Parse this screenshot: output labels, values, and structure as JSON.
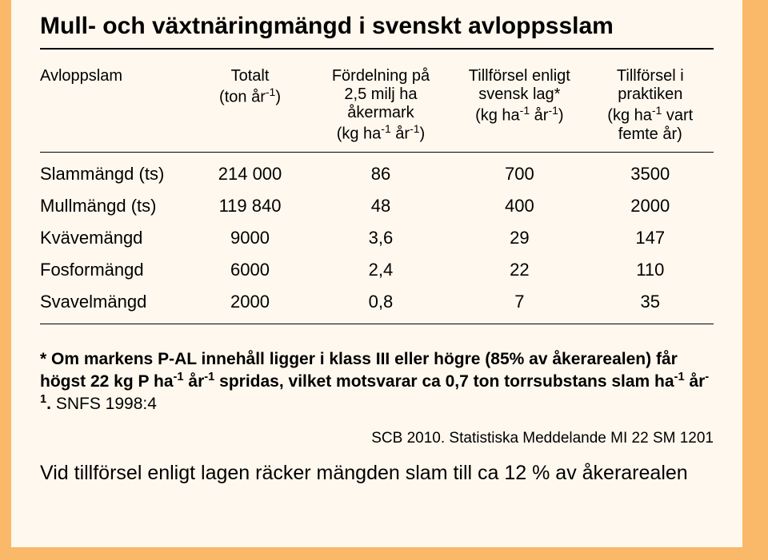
{
  "title": "Mull- och växtnäringmängd i svenskt avloppsslam",
  "headers": {
    "label": "Avloppslam",
    "total_l1": "Totalt",
    "total_l2": "(ton år",
    "total_sup": "-1",
    "total_l2b": ")",
    "ford_l1": "Fördelning på",
    "ford_l2": "2,5 milj ha",
    "ford_l3": "åkermark",
    "ford_l4a": "(kg ha",
    "ford_sup1": "-1",
    "ford_l4b": " år",
    "ford_sup2": "-1",
    "ford_l4c": ")",
    "lag_l1": "Tillförsel enligt",
    "lag_l2": "svensk lag*",
    "lag_l3a": "(kg ha",
    "lag_sup1": "-1",
    "lag_l3b": " år",
    "lag_sup2": "-1",
    "lag_l3c": ")",
    "prakt_l1": "Tillförsel i",
    "prakt_l2": "praktiken",
    "prakt_l3a": "(kg ha",
    "prakt_sup": "-1",
    "prakt_l3b": " vart",
    "prakt_l4": "femte år)"
  },
  "rows": [
    {
      "label": "Slammängd (ts)",
      "total": "214 000",
      "ford": "86",
      "lag": "700",
      "prakt": "3500"
    },
    {
      "label": "Mullmängd (ts)",
      "total": "119 840",
      "ford": "48",
      "lag": "400",
      "prakt": "2000"
    },
    {
      "label": "Kvävemängd",
      "total": "9000",
      "ford": "3,6",
      "lag": "29",
      "prakt": "147"
    },
    {
      "label": "Fosformängd",
      "total": "6000",
      "ford": "2,4",
      "lag": "22",
      "prakt": "110"
    },
    {
      "label": "Svavelmängd",
      "total": "2000",
      "ford": "0,8",
      "lag": "7",
      "prakt": "35"
    }
  ],
  "footnote": {
    "pre": "* Om markens P-AL innehåll ligger i klass III eller högre (85% av åkerarealen) får högst  22 kg P ha",
    "sup1": "-1",
    "mid": " år",
    "sup2": "-1",
    "mid2": " spridas, vilket motsvarar ca 0,7 ton torrsubstans slam ha",
    "sup3": "-1",
    "mid3": " år",
    "sup4": "-1",
    "end": ". ",
    "snfs": "SNFS 1998:4"
  },
  "source": "SCB 2010. Statistiska Meddelande  MI 22 SM 1201",
  "bottom": "Vid tillförsel enligt lagen räcker mängden slam till ca 12 % av åkerarealen",
  "style": {
    "bg_outer": "#f9b968",
    "bg_inner": "#fff8ee",
    "title_fontsize": 30,
    "header_fontsize": 20,
    "data_fontsize": 22,
    "footnote_fontsize": 21,
    "bottom_fontsize": 25,
    "col_widths": {
      "label": 190,
      "total": 150,
      "ford": 180,
      "lag": 170,
      "prakt": 160
    }
  }
}
